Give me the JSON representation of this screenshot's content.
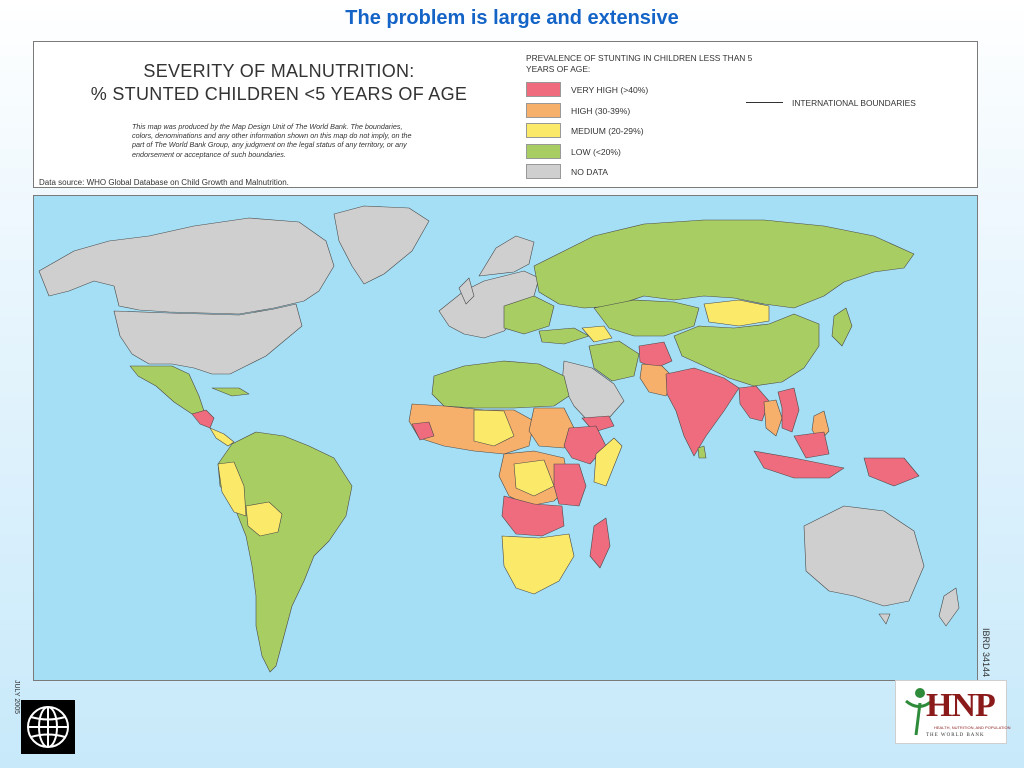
{
  "slide": {
    "title": "The problem is large and extensive"
  },
  "map": {
    "heading_line1": "SEVERITY OF MALNUTRITION:",
    "heading_line2": "% STUNTED CHILDREN <5 YEARS OF AGE",
    "disclaimer": "This map was produced by the Map Design Unit of The World Bank. The boundaries, colors, denominations and any other information shown on this map do not imply, on the part of The World Bank Group, any judgment on the legal status of any territory, or any endorsement or acceptance of such boundaries.",
    "data_source": "Data source: WHO Global Database on Child Growth and Malnutrition.",
    "legend_title": "PREVALENCE OF STUNTING IN CHILDREN LESS THAN 5 YEARS OF AGE:",
    "legend": [
      {
        "label": "VERY HIGH (>40%)",
        "color": "#ef6b7e"
      },
      {
        "label": "HIGH (30-39%)",
        "color": "#f7b06c"
      },
      {
        "label": "MEDIUM (20-29%)",
        "color": "#fbe96a"
      },
      {
        "label": "LOW (<20%)",
        "color": "#a8cd62"
      },
      {
        "label": "NO DATA",
        "color": "#cfcfcf"
      }
    ],
    "boundary_label": "INTERNATIONAL BOUNDARIES",
    "side_date": "JULY 2005",
    "side_id": "IBRD 34144",
    "ocean_color": "#a5dff5"
  },
  "logos": {
    "world_bank": "globe-icon",
    "hnp_text": "HNP",
    "hnp_sub": "HEALTH, NUTRITION, AND POPULATION",
    "hnp_bottom": "THE WORLD BANK"
  }
}
